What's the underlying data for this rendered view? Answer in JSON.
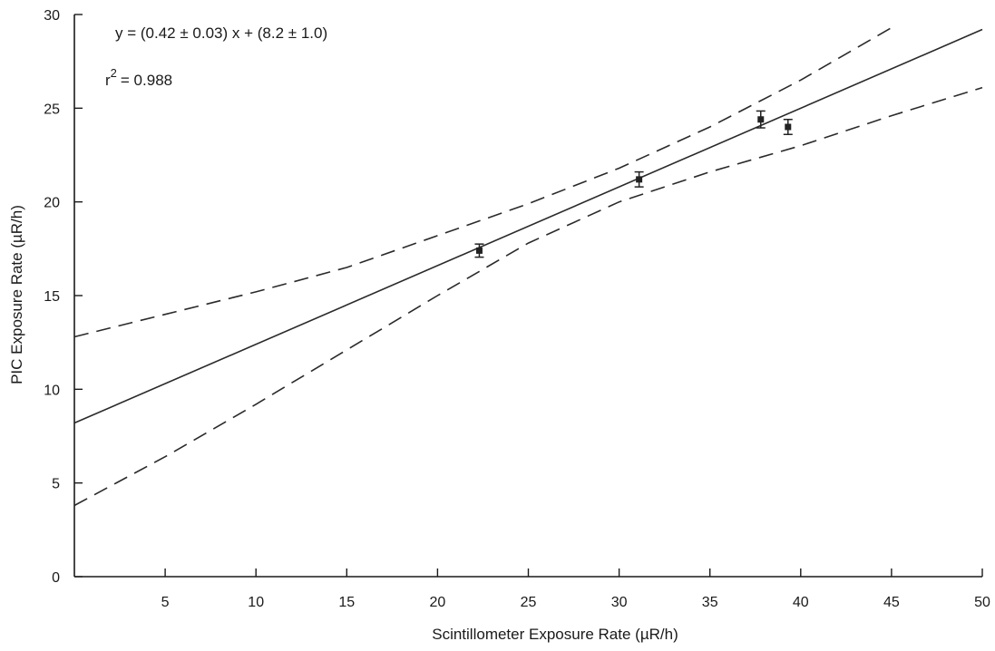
{
  "chart_data": {
    "type": "scatter",
    "xlabel": "Scintillometer Exposure Rate  (µR/h)",
    "ylabel": "PIC Exposure Rate (µR/h)",
    "xlim": [
      0,
      50
    ],
    "ylim": [
      0,
      30
    ],
    "xticks": [
      5,
      10,
      15,
      20,
      25,
      30,
      35,
      40,
      45,
      50
    ],
    "yticks": [
      0,
      5,
      10,
      15,
      20,
      25,
      30
    ],
    "grid": false,
    "equation": "y = (0.42 ± 0.03) x + (8.2 ± 1.0)",
    "r2_label": "r",
    "r2_exponent": "2",
    "r2_value": "= 0.988",
    "points": [
      {
        "x": 22.3,
        "y": 17.4,
        "yerr": 0.35
      },
      {
        "x": 31.1,
        "y": 21.2,
        "yerr": 0.4
      },
      {
        "x": 37.8,
        "y": 24.4,
        "yerr": 0.45
      },
      {
        "x": 39.3,
        "y": 24.0,
        "yerr": 0.4
      }
    ],
    "fit": {
      "slope": 0.42,
      "intercept": 8.2,
      "style": "solid"
    },
    "confidence_band": {
      "style": "dashed",
      "upper": [
        [
          0,
          12.8
        ],
        [
          5,
          14.0
        ],
        [
          10,
          15.2
        ],
        [
          15,
          16.5
        ],
        [
          20,
          18.2
        ],
        [
          25,
          19.9
        ],
        [
          30,
          21.8
        ],
        [
          35,
          24.0
        ],
        [
          40,
          26.5
        ],
        [
          45,
          29.3
        ]
      ],
      "lower": [
        [
          0,
          3.8
        ],
        [
          5,
          6.4
        ],
        [
          10,
          9.2
        ],
        [
          15,
          12.1
        ],
        [
          20,
          15.0
        ],
        [
          25,
          17.8
        ],
        [
          30,
          20.0
        ],
        [
          35,
          21.6
        ],
        [
          40,
          23.0
        ],
        [
          45,
          24.6
        ],
        [
          50,
          26.1
        ]
      ]
    }
  }
}
